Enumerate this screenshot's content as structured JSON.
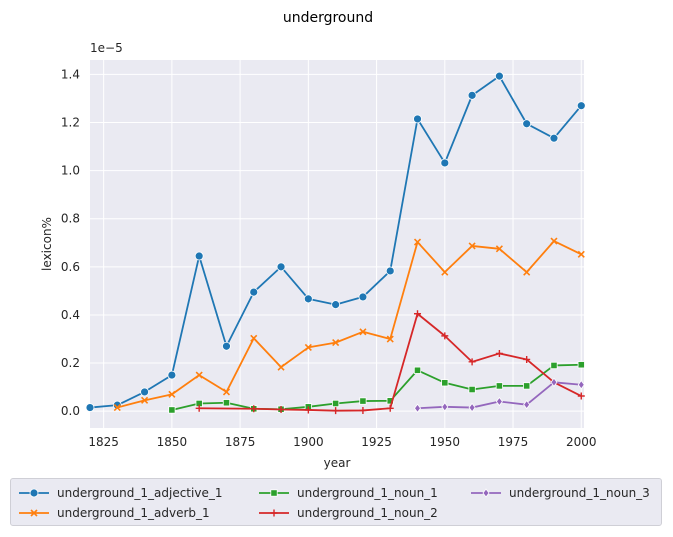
{
  "chart_data": {
    "type": "line",
    "title": "underground",
    "xlabel": "year",
    "ylabel": "lexicon%",
    "offset_text": "1e−5",
    "xlim": [
      1820,
      2001
    ],
    "ylim": [
      -0.07,
      1.46
    ],
    "xticks": [
      1825,
      1850,
      1875,
      1900,
      1925,
      1950,
      1975,
      2000
    ],
    "yticks": [
      0.0,
      0.2,
      0.4,
      0.6,
      0.8,
      1.0,
      1.2,
      1.4
    ],
    "ytick_labels": [
      "0.0",
      "0.2",
      "0.4",
      "0.6",
      "0.8",
      "1.0",
      "1.2",
      "1.4"
    ],
    "grid": true,
    "legend_position": "bottom",
    "series": [
      {
        "name": "underground_1_adjective_1",
        "color": "#1f77b4",
        "marker": "circle",
        "x": [
          1820,
          1830,
          1840,
          1850,
          1860,
          1870,
          1880,
          1890,
          1900,
          1910,
          1920,
          1930,
          1940,
          1950,
          1960,
          1970,
          1980,
          1990,
          2000
        ],
        "y": [
          0.015,
          0.025,
          0.08,
          0.15,
          0.645,
          0.27,
          0.495,
          0.6,
          0.467,
          0.443,
          0.475,
          0.583,
          1.215,
          1.032,
          1.313,
          1.393,
          1.195,
          1.135,
          1.27
        ]
      },
      {
        "name": "underground_1_adverb_1",
        "color": "#ff7f0e",
        "marker": "x",
        "x": [
          1830,
          1840,
          1850,
          1860,
          1870,
          1880,
          1890,
          1900,
          1910,
          1920,
          1930,
          1940,
          1950,
          1960,
          1970,
          1980,
          1990,
          2000
        ],
        "y": [
          0.015,
          0.045,
          0.07,
          0.15,
          0.08,
          0.303,
          0.183,
          0.265,
          0.285,
          0.33,
          0.3,
          0.703,
          0.578,
          0.687,
          0.675,
          0.578,
          0.707,
          0.652
        ]
      },
      {
        "name": "underground_1_noun_1",
        "color": "#2ca02c",
        "marker": "square",
        "x": [
          1850,
          1860,
          1870,
          1880,
          1890,
          1900,
          1910,
          1920,
          1930,
          1940,
          1950,
          1960,
          1970,
          1980,
          1990,
          2000
        ],
        "y": [
          0.005,
          0.032,
          0.035,
          0.01,
          0.008,
          0.018,
          0.032,
          0.042,
          0.043,
          0.17,
          0.118,
          0.09,
          0.105,
          0.105,
          0.19,
          0.193
        ]
      },
      {
        "name": "underground_1_noun_2",
        "color": "#d62728",
        "marker": "plus",
        "x": [
          1860,
          1880,
          1890,
          1900,
          1910,
          1920,
          1930,
          1940,
          1950,
          1960,
          1970,
          1980,
          1990,
          2000
        ],
        "y": [
          0.012,
          0.01,
          0.007,
          0.005,
          0.002,
          0.003,
          0.012,
          0.405,
          0.313,
          0.205,
          0.24,
          0.215,
          0.12,
          0.063
        ]
      },
      {
        "name": "underground_1_noun_3",
        "color": "#9467bd",
        "marker": "diamond",
        "x": [
          1940,
          1950,
          1960,
          1970,
          1980,
          1990,
          2000
        ],
        "y": [
          0.012,
          0.018,
          0.015,
          0.04,
          0.027,
          0.12,
          0.11
        ]
      }
    ]
  }
}
